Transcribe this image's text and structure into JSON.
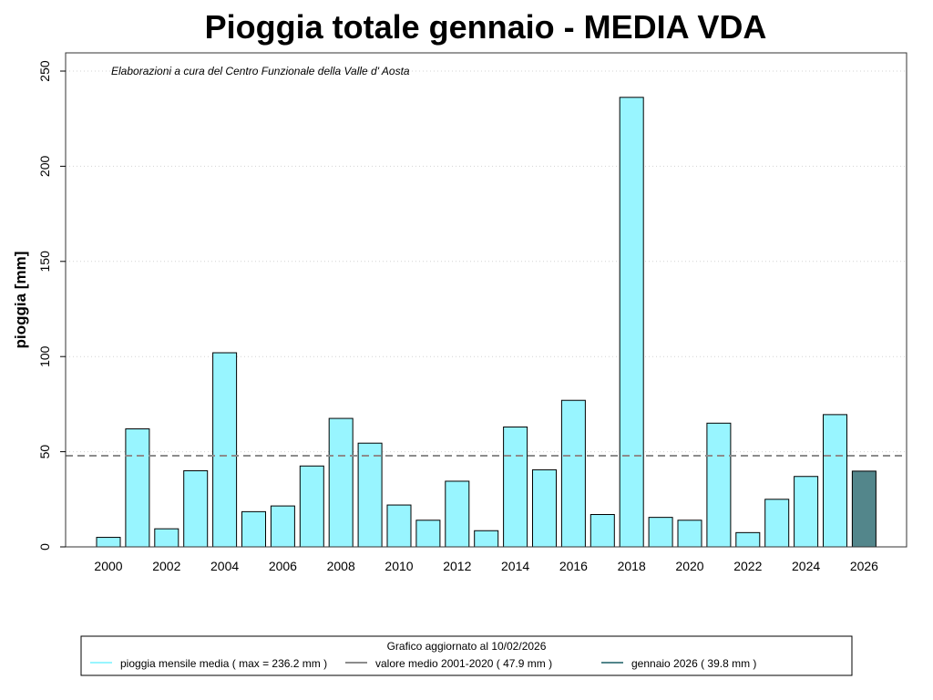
{
  "chart_data": {
    "type": "bar",
    "title": "Pioggia totale  gennaio - MEDIA VDA",
    "ylabel": "pioggia [mm]",
    "xlabel": "",
    "note": "Elaborazioni a cura del Centro Funzionale della Valle d' Aosta",
    "ylim": [
      0,
      250
    ],
    "y_ticks": [
      0,
      50,
      100,
      150,
      200,
      250
    ],
    "x_tick_labels": [
      "2000",
      "2002",
      "2004",
      "2006",
      "2008",
      "2010",
      "2012",
      "2014",
      "2016",
      "2018",
      "2020",
      "2022",
      "2024",
      "2026"
    ],
    "categories": [
      2000,
      2001,
      2002,
      2003,
      2004,
      2005,
      2006,
      2007,
      2008,
      2009,
      2010,
      2011,
      2012,
      2013,
      2014,
      2015,
      2016,
      2017,
      2018,
      2019,
      2020,
      2021,
      2022,
      2023,
      2024,
      2025,
      2026
    ],
    "values": [
      5,
      62,
      9.5,
      40,
      102,
      18.5,
      21.5,
      42.5,
      67.5,
      54.5,
      22,
      14,
      34.5,
      8.5,
      63,
      40.5,
      77,
      17,
      236.2,
      15.5,
      14,
      65,
      7.5,
      25,
      37,
      69.5,
      39.8
    ],
    "highlight_index": 26,
    "reference_value": 47.9,
    "grid": true,
    "bar_color": "#98f5ff",
    "highlight_color": "#53868b",
    "reference_color": "#8c8c8c",
    "legend": {
      "placement": "bottom",
      "title": "Grafico aggiornato al 10/02/2026",
      "entries": [
        {
          "label": "pioggia mensile media ( max =  236.2  mm )",
          "color": "#98f5ff"
        },
        {
          "label": "valore medio 2001-2020 (  47.9  mm )",
          "color": "#8c8c8c"
        },
        {
          "label": "gennaio 2026 (  39.8  mm )",
          "color": "#53868b"
        }
      ]
    }
  }
}
